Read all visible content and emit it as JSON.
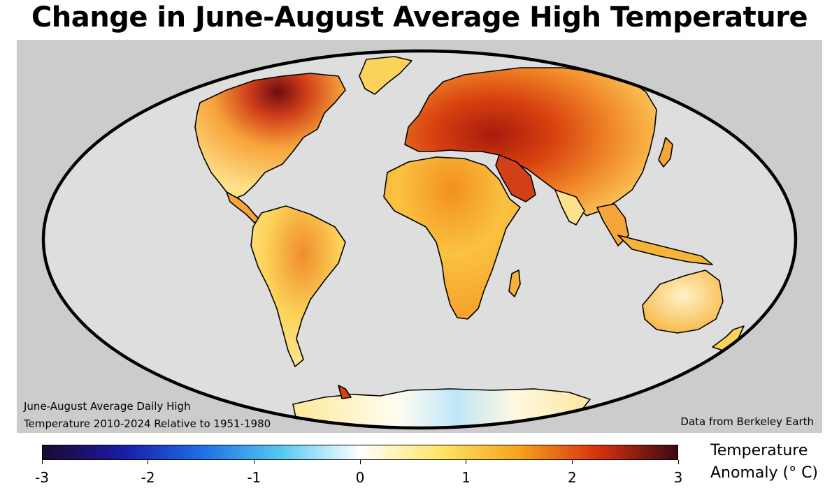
{
  "title": "Change in June-August Average High Temperature",
  "note_left": {
    "line1": "June-August Average Daily High",
    "line2": "Temperature 2010-2024 Relative to 1951-1980"
  },
  "note_right": "Data from Berkeley Earth",
  "colorbar": {
    "min": -3,
    "max": 3,
    "ticks": [
      "-3",
      "-2",
      "-1",
      "0",
      "1",
      "2",
      "3"
    ],
    "title_line1": "Temperature",
    "title_line2": "Anomaly (° C)",
    "colors": [
      "#1a0b2e",
      "#1a1aa6",
      "#1e6ee6",
      "#55c8f0",
      "#ffffff",
      "#ffe566",
      "#f7a21e",
      "#d8300f",
      "#3a0a12"
    ]
  },
  "colors": {
    "ocean": "#dedede",
    "panel": "#cccccc",
    "land_warm": "#f7b23a",
    "land_hot": "#d8420f",
    "land_hottest": "#8a1010",
    "land_mild": "#fde08a",
    "antarctica": "#fffdf5",
    "cold_spot": "#8fd3f5"
  },
  "map_icon": "world-mollweide-map"
}
